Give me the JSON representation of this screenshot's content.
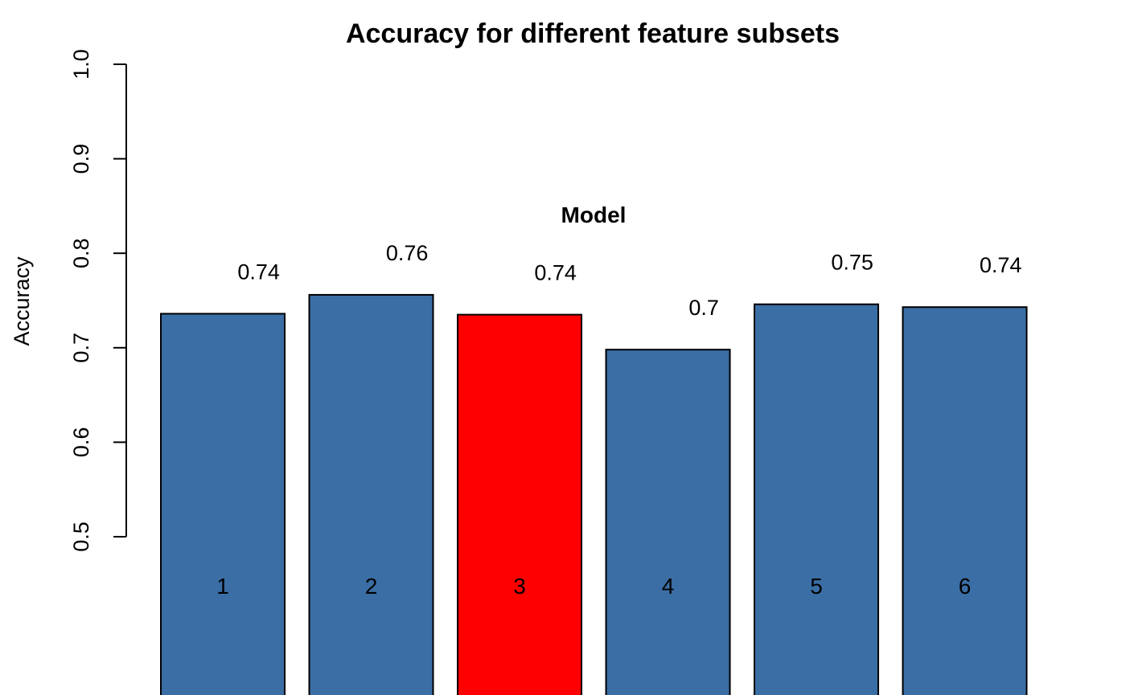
{
  "chart_data": {
    "type": "bar",
    "title": "Accuracy for different feature subsets",
    "xlabel": "",
    "ylabel": "Accuracy",
    "annotation": "Model",
    "categories": [
      "1",
      "2",
      "3",
      "4",
      "5",
      "6"
    ],
    "values": [
      0.736,
      0.756,
      0.735,
      0.698,
      0.746,
      0.743
    ],
    "data_labels": [
      "0.74",
      "0.76",
      "0.74",
      "0.7",
      "0.75",
      "0.74"
    ],
    "ylim": [
      0.5,
      1.0
    ],
    "yticks": [
      0.5,
      0.6,
      0.7,
      0.8,
      0.9,
      1.0
    ],
    "ytick_labels": [
      "0.5",
      "0.6",
      "0.7",
      "0.8",
      "0.9",
      "1.0"
    ],
    "grid": false,
    "colors": {
      "default": "#3A6EA5",
      "highlight": "#FF0000",
      "highlight_index": 2,
      "outline": "#000000"
    }
  }
}
